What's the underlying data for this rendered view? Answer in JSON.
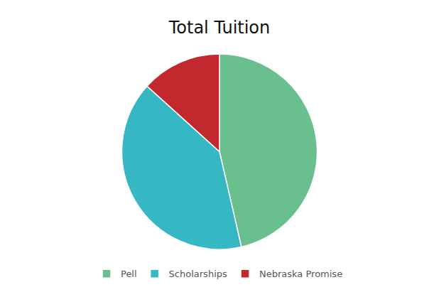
{
  "chart_data": {
    "type": "pie",
    "title": "Total Tuition",
    "categories": [
      "Pell",
      "Scholarships",
      "Nebraska Promise"
    ],
    "values": [
      46.4,
      40.3,
      13.3
    ],
    "colors": [
      "#6abf8f",
      "#35b8c3",
      "#c1292f"
    ],
    "legend": "bottom"
  }
}
